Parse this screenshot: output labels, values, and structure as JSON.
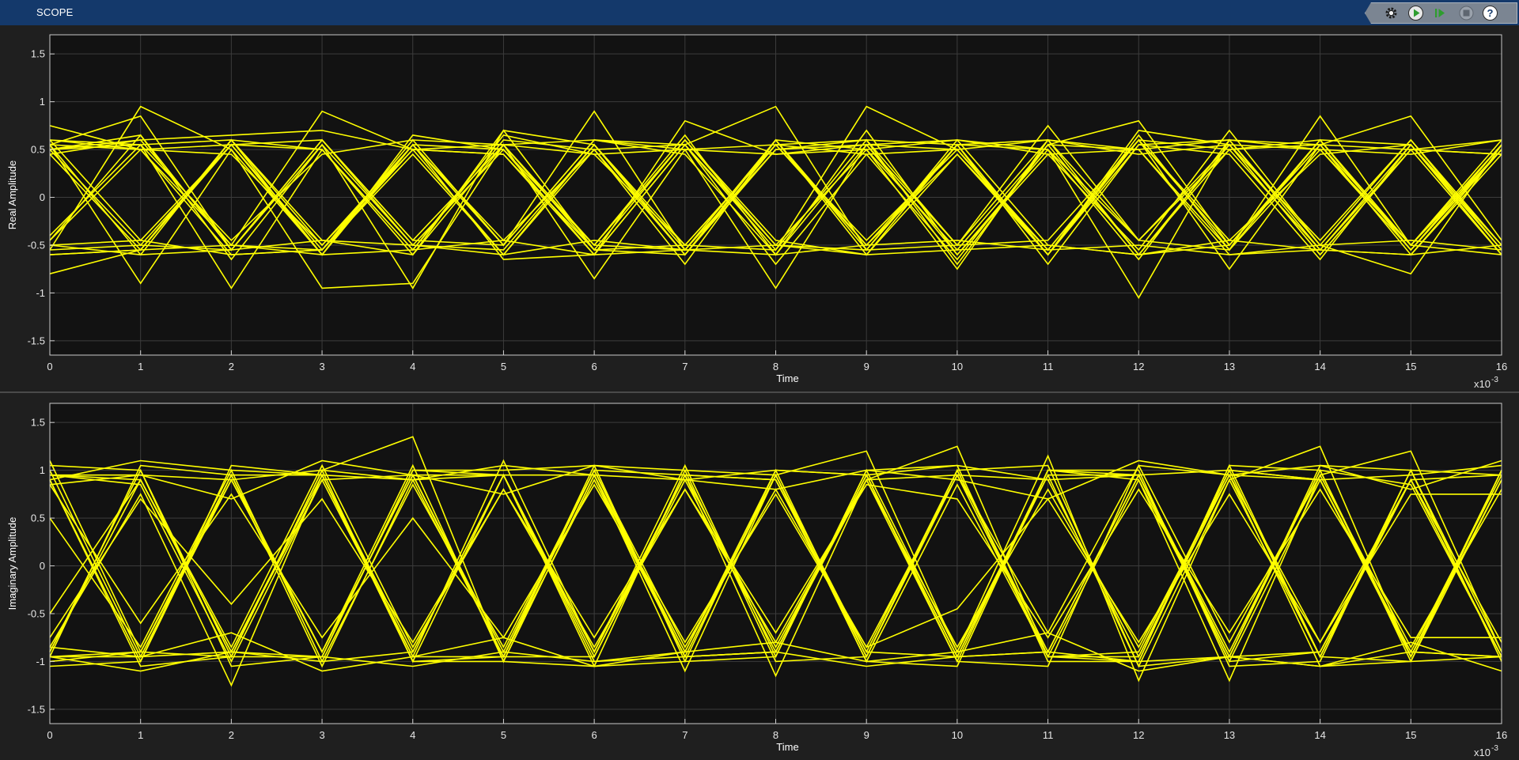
{
  "window": {
    "title": "SCOPE"
  },
  "toolbar": [
    {
      "name": "settings-icon",
      "label": "Settings"
    },
    {
      "name": "run-icon",
      "label": "Run"
    },
    {
      "name": "step-forward-icon",
      "label": "Step Forward"
    },
    {
      "name": "stop-icon",
      "label": "Stop"
    },
    {
      "name": "help-icon",
      "label": "Help"
    }
  ],
  "colors": {
    "trace": "#ffff00",
    "axes_bg": "#121212",
    "figure_bg": "#1f1f1f",
    "grid": "#3c3c3c",
    "text": "#e6e6e6",
    "titlebar": "#14396b"
  },
  "chart_data": [
    {
      "type": "line",
      "title": "",
      "xlabel": "Time",
      "ylabel": "Real Amplitude",
      "x_exponent_label": "x10",
      "x_exponent_power": "-3",
      "xlim": [
        0,
        16
      ],
      "ylim": [
        -1.65,
        1.7
      ],
      "xticks": [
        "0",
        "1",
        "2",
        "3",
        "4",
        "5",
        "6",
        "7",
        "8",
        "9",
        "10",
        "11",
        "12",
        "13",
        "14",
        "15",
        "16"
      ],
      "yticks": [
        "1.5",
        "1",
        "0.5",
        "0",
        "-0.5",
        "-1",
        "-1.5"
      ],
      "grid": true,
      "x": [
        0,
        1,
        2,
        3,
        4,
        5,
        6,
        7,
        8,
        9,
        10,
        11,
        12,
        13,
        14,
        15,
        16
      ],
      "series": [
        {
          "values": [
            0.55,
            0.85,
            -0.55,
            0.6,
            -0.45,
            0.55,
            -0.5,
            0.65,
            -0.6,
            0.7,
            -0.6,
            0.45,
            -0.55,
            0.7,
            -0.5,
            0.6,
            -0.5
          ]
        },
        {
          "values": [
            -0.45,
            0.5,
            -0.6,
            -0.55,
            0.45,
            -0.6,
            0.5,
            0.55,
            -0.7,
            0.45,
            -0.65,
            0.55,
            -0.6,
            -0.5,
            0.6,
            -0.55,
            0.55
          ]
        },
        {
          "values": [
            0.6,
            -0.45,
            0.55,
            0.5,
            -0.55,
            0.65,
            0.45,
            -0.5,
            0.55,
            -0.45,
            0.5,
            -0.6,
            0.7,
            0.55,
            -0.6,
            0.5,
            0.6
          ]
        },
        {
          "values": [
            -0.55,
            0.95,
            0.5,
            -0.6,
            0.55,
            -0.5,
            0.6,
            0.45,
            -0.6,
            0.55,
            0.5,
            -0.55,
            0.6,
            -0.45,
            0.45,
            0.55,
            -0.6
          ]
        },
        {
          "values": [
            0.5,
            0.6,
            -0.5,
            0.9,
            0.5,
            0.45,
            -0.6,
            0.55,
            0.95,
            -0.55,
            0.6,
            0.5,
            -0.45,
            0.55,
            -0.6,
            0.5,
            0.45
          ]
        },
        {
          "values": [
            -0.8,
            -0.55,
            0.6,
            -0.45,
            -0.6,
            0.7,
            -0.55,
            -0.6,
            0.5,
            0.55,
            -0.5,
            0.6,
            -0.6,
            0.5,
            0.55,
            -0.5,
            0.6
          ]
        },
        {
          "values": [
            0.55,
            -0.6,
            -0.55,
            0.55,
            -0.5,
            -0.55,
            0.55,
            -0.5,
            -0.55,
            0.95,
            0.5,
            -0.6,
            0.55,
            0.45,
            -0.65,
            0.55,
            -0.55
          ]
        },
        {
          "values": [
            0.75,
            0.5,
            0.55,
            -0.6,
            0.65,
            0.5,
            -0.5,
            0.6,
            -0.45,
            -0.6,
            0.55,
            0.5,
            -0.65,
            0.6,
            0.5,
            -0.55,
            0.5
          ]
        },
        {
          "values": [
            -0.5,
            -0.45,
            -0.6,
            -0.55,
            0.55,
            -0.65,
            -0.6,
            0.8,
            0.45,
            0.5,
            -0.75,
            0.6,
            0.5,
            -0.55,
            0.85,
            -0.5,
            -0.6
          ]
        },
        {
          "values": [
            0.45,
            0.6,
            0.65,
            0.7,
            0.5,
            0.55,
            0.45,
            0.5,
            0.55,
            0.45,
            0.5,
            0.6,
            0.45,
            0.55,
            0.5,
            0.45,
            0.6
          ]
        },
        {
          "values": [
            -0.6,
            -0.55,
            -0.5,
            -0.6,
            -0.55,
            -0.45,
            -0.6,
            -0.55,
            -0.5,
            -0.6,
            -0.55,
            -0.5,
            -0.6,
            -0.45,
            -0.55,
            -0.6,
            -0.5
          ]
        },
        {
          "values": [
            0.55,
            -0.9,
            0.5,
            -0.95,
            -0.9,
            0.55,
            -0.85,
            0.5,
            -0.95,
            0.55,
            -0.6,
            0.5,
            -1.05,
            0.6,
            -0.5,
            -0.8,
            0.55
          ]
        },
        {
          "values": [
            -0.4,
            0.55,
            -0.95,
            0.5,
            -0.55,
            0.6,
            0.5,
            -0.7,
            0.6,
            -0.5,
            0.55,
            -0.6,
            0.6,
            -0.75,
            0.55,
            0.85,
            -0.45
          ]
        },
        {
          "values": [
            0.5,
            -0.5,
            0.55,
            -0.55,
            0.6,
            -0.5,
            0.9,
            -0.55,
            0.5,
            0.6,
            -0.7,
            0.55,
            0.8,
            -0.5,
            0.6,
            -0.5,
            0.5
          ]
        },
        {
          "values": [
            -0.45,
            0.65,
            -0.55,
            0.6,
            -0.5,
            0.5,
            -0.6,
            0.55,
            -0.55,
            0.6,
            0.55,
            -0.7,
            0.55,
            0.6,
            -0.55,
            0.55,
            -0.6
          ]
        },
        {
          "values": [
            0.6,
            0.5,
            0.45,
            -0.5,
            0.5,
            -0.6,
            0.55,
            -0.6,
            0.6,
            -0.55,
            -0.5,
            0.75,
            -0.45,
            0.5,
            0.6,
            -0.55,
            0.5
          ]
        },
        {
          "values": [
            -0.5,
            -0.6,
            0.6,
            0.5,
            -0.6,
            0.55,
            -0.55,
            0.6,
            -0.5,
            0.5,
            0.6,
            -0.5,
            -0.6,
            0.55,
            -0.45,
            0.6,
            -0.55
          ]
        },
        {
          "values": [
            0.5,
            0.55,
            -0.45,
            0.45,
            0.6,
            0.55,
            0.6,
            0.5,
            0.45,
            0.55,
            0.6,
            0.45,
            0.5,
            0.6,
            0.55,
            0.5,
            0.45
          ]
        },
        {
          "values": [
            -0.55,
            -0.5,
            -0.55,
            -0.45,
            -0.5,
            -0.6,
            -0.45,
            -0.55,
            -0.6,
            -0.5,
            -0.45,
            -0.55,
            -0.5,
            -0.6,
            -0.5,
            -0.45,
            -0.55
          ]
        },
        {
          "values": [
            0.55,
            0.5,
            -0.5,
            -0.55,
            0.5,
            0.45,
            -0.55,
            -0.5,
            0.55,
            0.6,
            -0.5,
            -0.45,
            0.6,
            0.5,
            -0.55,
            -0.6,
            0.5
          ]
        },
        {
          "values": [
            -0.6,
            -0.55,
            0.55,
            0.6,
            -0.45,
            -0.5,
            0.6,
            0.55,
            -0.5,
            -0.55,
            0.55,
            0.6,
            -0.45,
            -0.55,
            0.6,
            0.55,
            -0.5
          ]
        },
        {
          "values": [
            0.45,
            -0.55,
            0.6,
            -0.5,
            0.55,
            -0.45,
            0.5,
            -0.6,
            0.55,
            -0.5,
            0.45,
            -0.55,
            0.6,
            -0.5,
            0.55,
            -0.6,
            0.45
          ]
        },
        {
          "values": [
            0.5,
            0.65,
            -0.65,
            0.55,
            -0.95,
            0.7,
            0.55,
            -0.55,
            0.6,
            -0.6,
            0.45,
            -0.6,
            0.65,
            -0.55,
            0.5,
            -0.5,
            0.55
          ]
        },
        {
          "values": [
            0.6,
            0.55,
            0.6,
            -0.6,
            0.55,
            0.5,
            -0.5,
            -0.55,
            0.6,
            0.5,
            -0.55,
            0.55,
            0.5,
            -0.6,
            -0.55,
            0.5,
            -0.6
          ]
        }
      ]
    },
    {
      "type": "line",
      "title": "",
      "xlabel": "Time",
      "ylabel": "Imaginary Amplitude",
      "x_exponent_label": "x10",
      "x_exponent_power": "-3",
      "xlim": [
        0,
        16
      ],
      "ylim": [
        -1.65,
        1.7
      ],
      "xticks": [
        "0",
        "1",
        "2",
        "3",
        "4",
        "5",
        "6",
        "7",
        "8",
        "9",
        "10",
        "11",
        "12",
        "13",
        "14",
        "15",
        "16"
      ],
      "yticks": [
        "1.5",
        "1",
        "0.5",
        "0",
        "-0.5",
        "-1",
        "-1.5"
      ],
      "grid": true,
      "x": [
        0,
        1,
        2,
        3,
        4,
        5,
        6,
        7,
        8,
        9,
        10,
        11,
        12,
        13,
        14,
        15,
        16
      ],
      "series": [
        {
          "values": [
            1.0,
            -0.95,
            0.9,
            -0.9,
            1.05,
            -1.0,
            0.95,
            -0.9,
            1.0,
            -0.95,
            1.0,
            -0.9,
            0.95,
            -1.0,
            0.9,
            -0.95,
            1.0
          ]
        },
        {
          "values": [
            -0.9,
            1.0,
            -0.95,
            1.0,
            -1.0,
            0.95,
            -0.9,
            1.05,
            -0.95,
            1.0,
            -0.9,
            0.95,
            -1.05,
            0.9,
            -0.95,
            1.0,
            -0.9
          ]
        },
        {
          "values": [
            0.95,
            0.85,
            -1.0,
            0.9,
            0.95,
            -0.9,
            1.0,
            0.95,
            -0.85,
            0.9,
            -1.0,
            1.0,
            0.9,
            -0.95,
            1.0,
            0.85,
            -0.95
          ]
        },
        {
          "values": [
            -1.0,
            -0.9,
            0.95,
            -1.05,
            0.9,
            0.95,
            -1.0,
            -0.9,
            0.95,
            -1.0,
            0.85,
            -0.95,
            -0.9,
            1.0,
            -0.95,
            -1.0,
            0.9
          ]
        },
        {
          "values": [
            0.9,
            1.1,
            1.0,
            0.95,
            0.9,
            1.05,
            0.95,
            0.9,
            1.0,
            0.95,
            1.05,
            0.9,
            0.95,
            1.0,
            0.9,
            0.95,
            1.05
          ]
        },
        {
          "values": [
            -0.95,
            -1.1,
            -0.9,
            -0.95,
            -1.05,
            -0.9,
            -1.0,
            -0.95,
            -0.9,
            -1.05,
            -0.95,
            -0.9,
            -1.0,
            -0.95,
            -1.05,
            -0.9,
            -0.95
          ]
        },
        {
          "values": [
            1.1,
            -0.9,
            -0.95,
            1.0,
            1.35,
            -1.0,
            0.95,
            -1.1,
            0.95,
            1.2,
            -0.9,
            1.15,
            -1.2,
            0.9,
            1.25,
            -0.95,
            0.9
          ]
        },
        {
          "values": [
            -0.85,
            0.75,
            -1.25,
            0.95,
            -0.95,
            1.1,
            -0.9,
            0.95,
            -1.15,
            0.9,
            1.25,
            -0.95,
            0.9,
            -1.2,
            0.95,
            1.2,
            -0.9
          ]
        },
        {
          "values": [
            0.9,
            -1.0,
            0.95,
            -0.9,
            0.95,
            -0.95,
            1.0,
            -0.95,
            0.95,
            -0.9,
            1.0,
            -0.95,
            -1.0,
            1.05,
            -0.95,
            0.9,
            -0.95
          ]
        },
        {
          "values": [
            -0.9,
            0.9,
            -0.9,
            0.95,
            -0.9,
            0.95,
            -0.95,
            0.9,
            -0.9,
            0.95,
            -0.95,
            1.0,
            0.95,
            -0.9,
            1.0,
            -0.95,
            1.0
          ]
        },
        {
          "values": [
            0.5,
            -0.85,
            1.0,
            -1.0,
            0.85,
            -0.85,
            1.0,
            -0.85,
            0.8,
            -0.85,
            0.95,
            -0.7,
            1.05,
            -0.8,
            0.95,
            -0.85,
            0.8
          ]
        },
        {
          "values": [
            -0.5,
            0.9,
            -0.85,
            1.05,
            -0.85,
            0.8,
            -0.85,
            0.8,
            -0.8,
            0.9,
            -0.85,
            0.8,
            -0.85,
            0.95,
            -0.8,
            0.9,
            -0.8
          ]
        },
        {
          "values": [
            0.95,
            0.95,
            0.9,
            -0.9,
            0.95,
            0.95,
            -0.9,
            0.95,
            0.9,
            -0.95,
            0.95,
            0.9,
            -0.95,
            0.95,
            0.9,
            -0.9,
            0.95
          ]
        },
        {
          "values": [
            -0.95,
            -0.95,
            -0.9,
            0.9,
            -0.95,
            -0.95,
            0.9,
            -0.95,
            -0.9,
            0.95,
            -0.95,
            -0.9,
            0.95,
            -0.95,
            -0.9,
            0.9,
            -0.95
          ]
        },
        {
          "values": [
            0.85,
            -0.6,
            0.75,
            -0.75,
            0.5,
            -0.75,
            0.85,
            -0.8,
            0.75,
            -0.85,
            -0.45,
            0.7,
            -0.8,
            0.75,
            -0.8,
            0.75,
            0.75
          ]
        },
        {
          "values": [
            -0.75,
            0.7,
            -0.4,
            0.7,
            -0.8,
            0.8,
            -0.75,
            0.8,
            -0.7,
            0.85,
            0.7,
            -0.75,
            0.8,
            -0.7,
            0.8,
            -0.75,
            -0.75
          ]
        },
        {
          "values": [
            1.05,
            1.0,
            -1.05,
            -0.95,
            1.0,
            1.0,
            1.05,
            -1.0,
            -0.95,
            1.0,
            1.05,
            -1.0,
            -1.0,
            1.05,
            1.0,
            -1.0,
            -0.95
          ]
        },
        {
          "values": [
            -1.05,
            -1.0,
            1.05,
            0.95,
            -1.0,
            -1.0,
            -1.05,
            1.0,
            0.95,
            -1.0,
            -1.05,
            1.0,
            1.0,
            -1.05,
            -1.0,
            1.0,
            0.95
          ]
        },
        {
          "values": [
            0.9,
            -1.05,
            -0.95,
            -0.95,
            1.0,
            0.95,
            -1.05,
            -1.0,
            1.0,
            0.95,
            -1.0,
            -1.05,
            1.05,
            0.95,
            -1.05,
            -1.0,
            1.0
          ]
        },
        {
          "values": [
            -0.95,
            1.05,
            0.95,
            0.95,
            -1.0,
            -0.95,
            1.05,
            1.0,
            -1.0,
            -0.95,
            1.0,
            1.05,
            -1.05,
            -0.95,
            1.05,
            1.0,
            -1.0
          ]
        },
        {
          "values": [
            0.95,
            0.9,
            -0.9,
            -1.0,
            -0.9,
            0.95,
            0.95,
            -0.95,
            -0.9,
            0.9,
            0.95,
            -0.95,
            -0.95,
            1.0,
            0.9,
            -0.9,
            -0.95
          ]
        },
        {
          "values": [
            -0.95,
            -0.9,
            0.9,
            1.0,
            0.9,
            -0.95,
            -0.95,
            0.95,
            0.9,
            -0.9,
            -0.95,
            0.95,
            0.95,
            -1.0,
            -0.9,
            0.9,
            0.95
          ]
        },
        {
          "values": [
            0.85,
            0.95,
            0.7,
            1.1,
            0.95,
            0.75,
            1.05,
            0.9,
            0.8,
            1.0,
            0.9,
            0.7,
            1.1,
            0.95,
            1.05,
            0.8,
            1.1
          ]
        },
        {
          "values": [
            -0.85,
            -0.95,
            -0.7,
            -1.1,
            -0.95,
            -0.75,
            -1.05,
            -0.9,
            -0.8,
            -1.0,
            -0.9,
            -0.7,
            -1.1,
            -0.95,
            -1.05,
            -0.8,
            -1.1
          ]
        }
      ]
    }
  ]
}
